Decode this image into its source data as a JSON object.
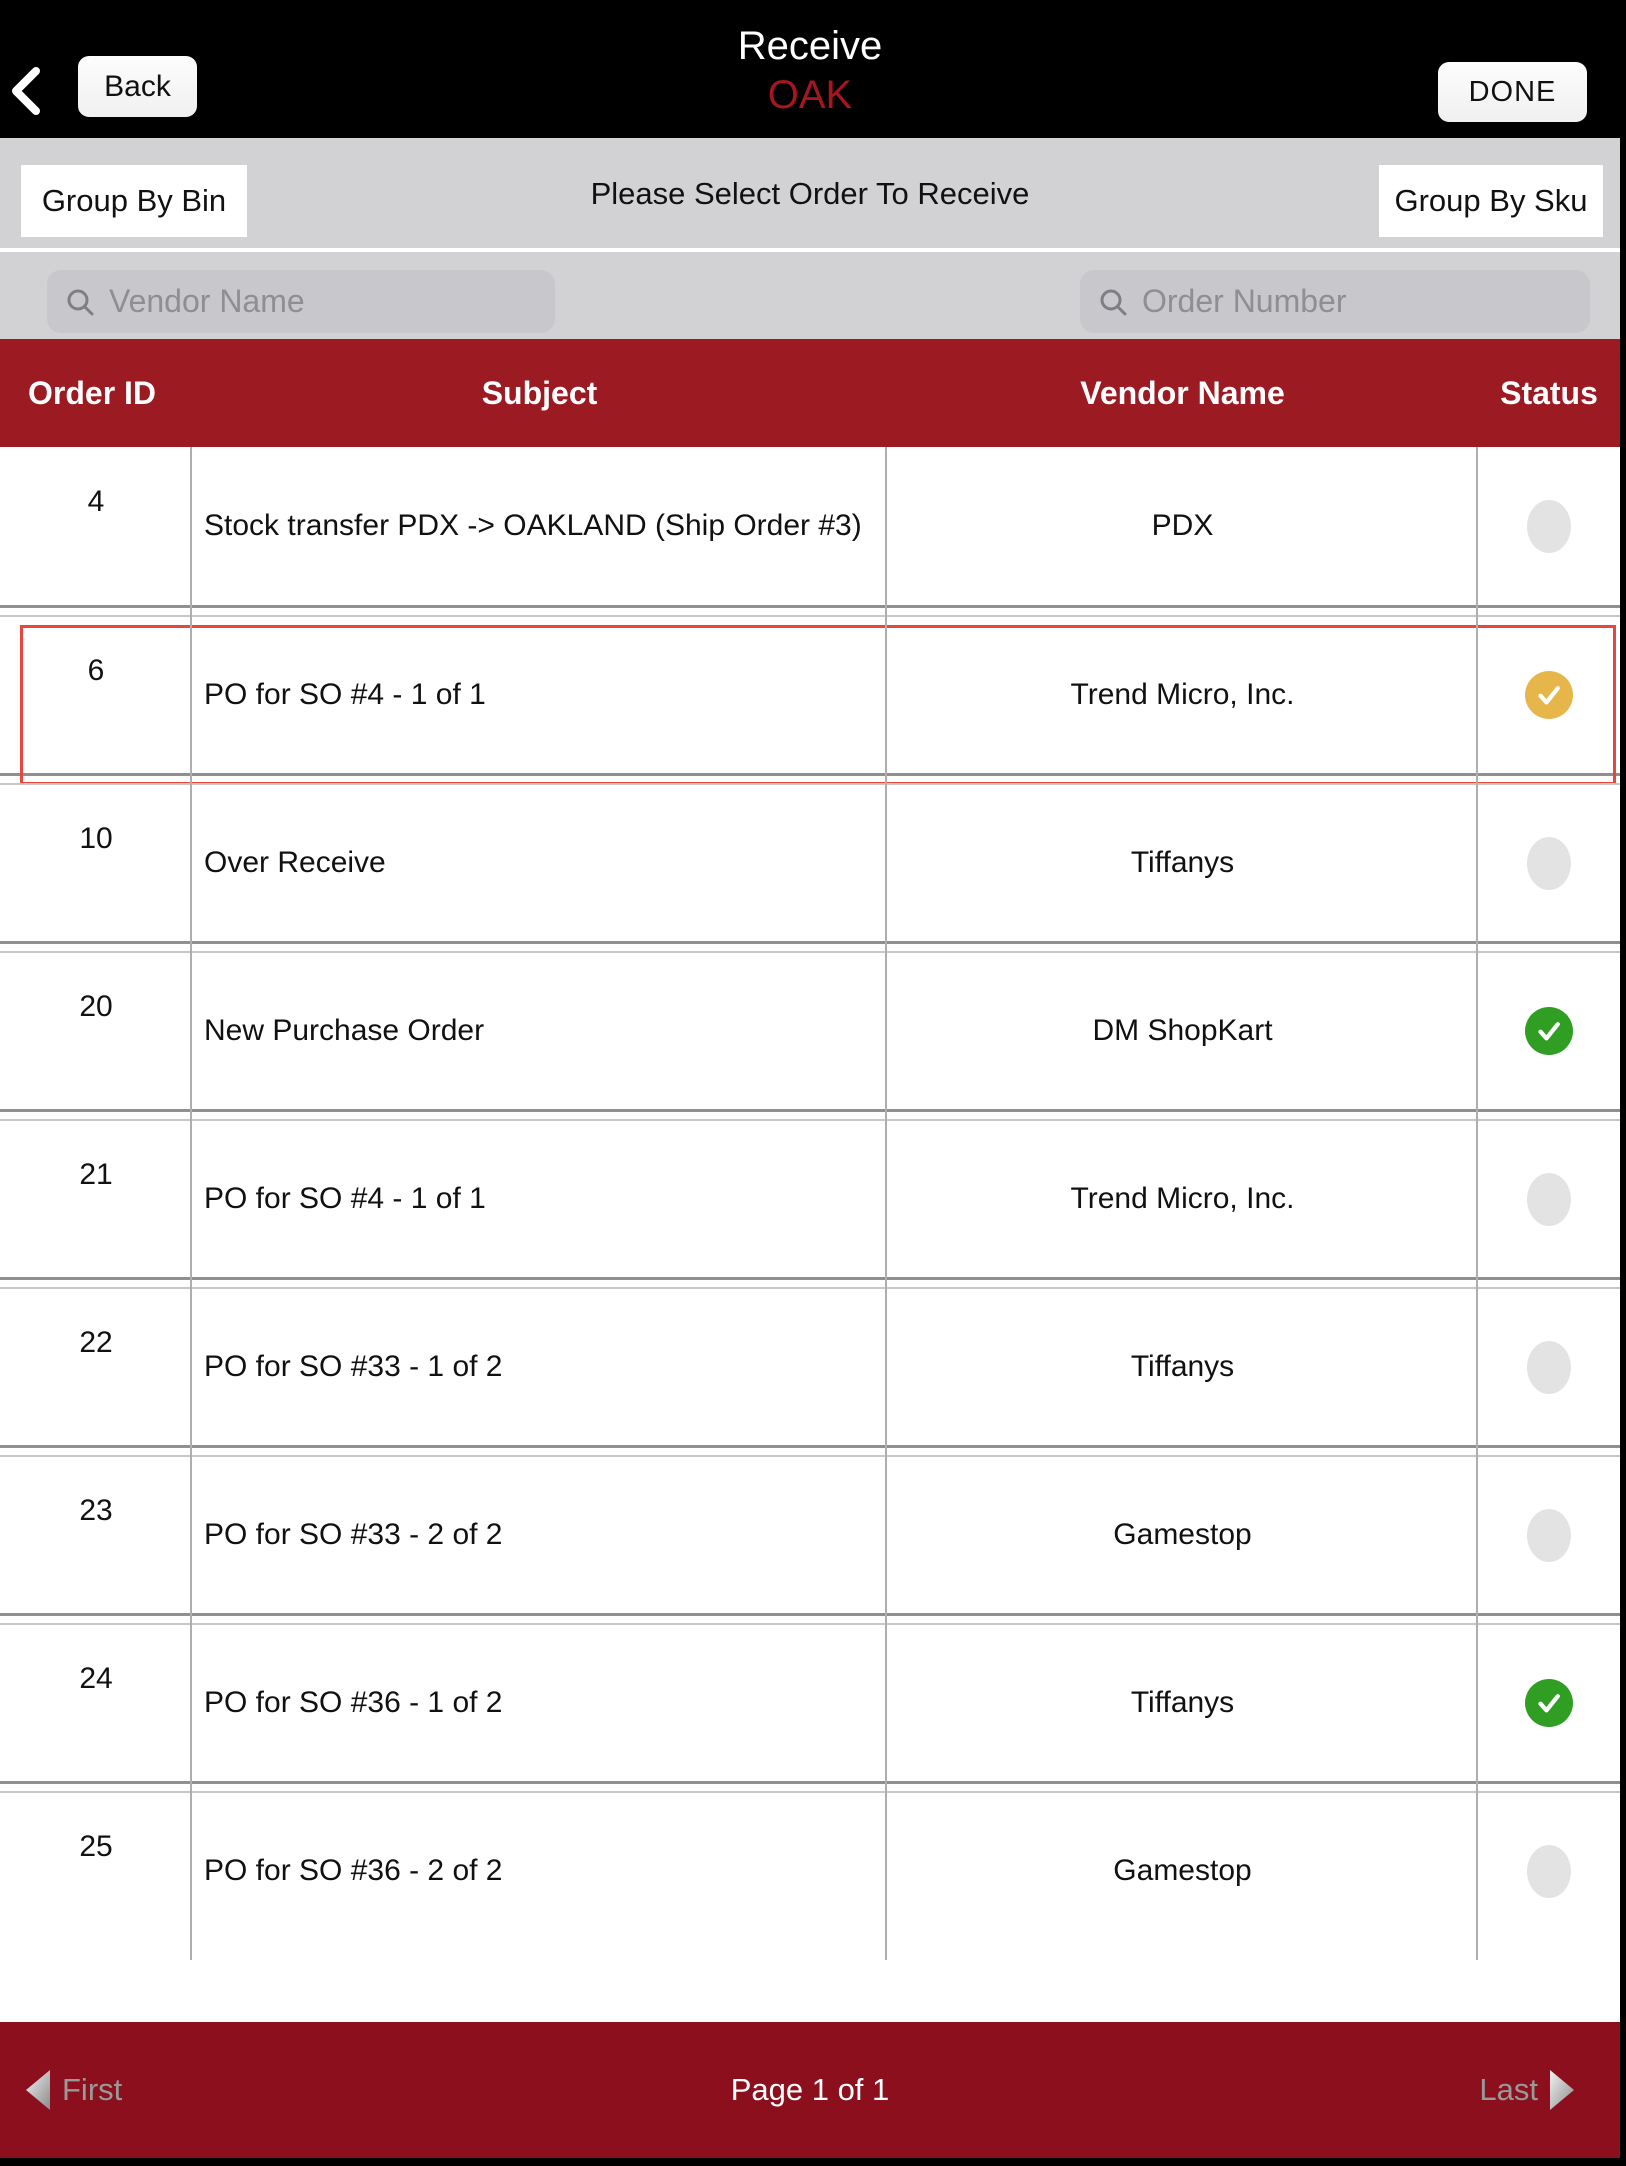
{
  "header": {
    "back_label": "Back",
    "title": "Receive",
    "subtitle": "OAK",
    "done_label": "DONE"
  },
  "toolbar": {
    "group_by_bin_label": "Group By Bin",
    "prompt": "Please Select Order To Receive",
    "group_by_sku_label": "Group By Sku"
  },
  "search": {
    "vendor_placeholder": "Vendor Name",
    "vendor_value": "",
    "order_placeholder": "Order Number",
    "order_value": ""
  },
  "table": {
    "columns": [
      "Order ID",
      "Subject",
      "Vendor Name",
      "Status"
    ],
    "rows": [
      {
        "order_id": "4",
        "subject": "Stock transfer PDX -> OAKLAND (Ship Order #3)",
        "vendor": "PDX",
        "status": "none",
        "highlighted": false
      },
      {
        "order_id": "6",
        "subject": "PO for SO #4 - 1 of 1",
        "vendor": "Trend Micro, Inc.",
        "status": "partial",
        "highlighted": true
      },
      {
        "order_id": "10",
        "subject": "Over Receive",
        "vendor": "Tiffanys",
        "status": "none",
        "highlighted": false
      },
      {
        "order_id": "20",
        "subject": "New Purchase Order",
        "vendor": "DM ShopKart",
        "status": "complete",
        "highlighted": false
      },
      {
        "order_id": "21",
        "subject": "PO for SO #4 - 1 of 1",
        "vendor": "Trend Micro, Inc.",
        "status": "none",
        "highlighted": false
      },
      {
        "order_id": "22",
        "subject": "PO for SO #33 - 1 of 2",
        "vendor": "Tiffanys",
        "status": "none",
        "highlighted": false
      },
      {
        "order_id": "23",
        "subject": "PO for SO #33 - 2 of 2",
        "vendor": "Gamestop",
        "status": "none",
        "highlighted": false
      },
      {
        "order_id": "24",
        "subject": "PO for SO #36 - 1 of 2",
        "vendor": "Tiffanys",
        "status": "complete",
        "highlighted": false
      },
      {
        "order_id": "25",
        "subject": "PO for SO #36 - 2 of 2",
        "vendor": "Gamestop",
        "status": "none",
        "highlighted": false
      }
    ]
  },
  "footer": {
    "first_label": "First",
    "page_label": "Page 1 of 1",
    "last_label": "Last"
  },
  "colors": {
    "header_red": "#9c1a21",
    "footer_red": "#8c0f1d",
    "oak_red": "#a5161f",
    "highlight_red": "#e8473e",
    "status_complete_green": "#2f9e22",
    "status_partial_yellow": "#e7b64a",
    "status_none_gray": "#e3e3e3",
    "bar_gray": "#d2d2d4"
  }
}
